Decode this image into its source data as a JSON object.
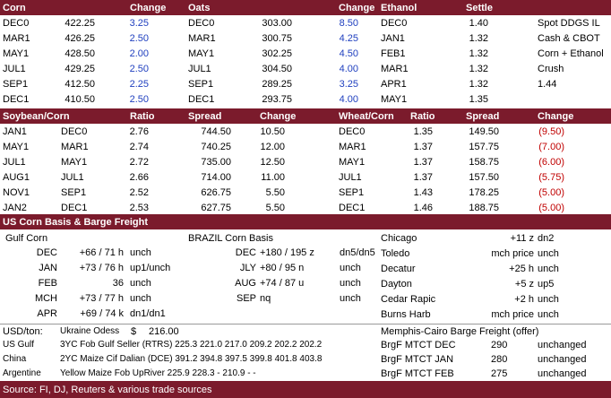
{
  "s1": {
    "headers": [
      "Corn",
      "Change",
      "Oats",
      "Change",
      "Ethanol",
      "Settle"
    ],
    "rows": [
      [
        "DEC0",
        "422.25",
        "3.25",
        "DEC0",
        "303.00",
        "8.50",
        "DEC0",
        "1.40",
        "Spot DDGS IL"
      ],
      [
        "MAR1",
        "426.25",
        "2.50",
        "MAR1",
        "300.75",
        "4.25",
        "JAN1",
        "1.32",
        "Cash & CBOT"
      ],
      [
        "MAY1",
        "428.50",
        "2.00",
        "MAY1",
        "302.25",
        "4.50",
        "FEB1",
        "1.32",
        "Corn + Ethanol"
      ],
      [
        "JUL1",
        "429.25",
        "2.50",
        "JUL1",
        "304.50",
        "4.00",
        "MAR1",
        "1.32",
        "Crush"
      ],
      [
        "SEP1",
        "412.50",
        "2.25",
        "SEP1",
        "289.25",
        "3.25",
        "APR1",
        "1.32",
        "1.44"
      ],
      [
        "DEC1",
        "410.50",
        "2.50",
        "DEC1",
        "293.75",
        "4.00",
        "MAY1",
        "1.35",
        ""
      ]
    ]
  },
  "s2": {
    "headers": [
      "Soybean/Corn",
      "Ratio",
      "Spread",
      "Change",
      "Wheat/Corn",
      "Ratio",
      "Spread",
      "Change"
    ],
    "rows": [
      [
        "JAN1",
        "DEC0",
        "2.76",
        "744.50",
        "10.50",
        "DEC0",
        "1.35",
        "149.50",
        "(9.50)"
      ],
      [
        "MAY1",
        "MAR1",
        "2.74",
        "740.25",
        "12.00",
        "MAR1",
        "1.37",
        "157.75",
        "(7.00)"
      ],
      [
        "JUL1",
        "MAY1",
        "2.72",
        "735.00",
        "12.50",
        "MAY1",
        "1.37",
        "158.75",
        "(6.00)"
      ],
      [
        "AUG1",
        "JUL1",
        "2.66",
        "714.00",
        "11.00",
        "JUL1",
        "1.37",
        "157.50",
        "(5.75)"
      ],
      [
        "NOV1",
        "SEP1",
        "2.52",
        "626.75",
        "5.50",
        "SEP1",
        "1.43",
        "178.25",
        "(5.00)"
      ],
      [
        "JAN2",
        "DEC1",
        "2.53",
        "627.75",
        "5.50",
        "DEC1",
        "1.46",
        "188.75",
        "(5.00)"
      ]
    ]
  },
  "s3": {
    "title": "US Corn Basis & Barge Freight",
    "gulf_title": "Gulf Corn",
    "gulf": [
      [
        "DEC",
        "+66 / 71 h",
        "unch"
      ],
      [
        "JAN",
        "+73 / 76 h",
        "up1/unch"
      ],
      [
        "FEB",
        "36",
        "unch"
      ],
      [
        "MCH",
        "+73 / 77 h",
        "unch"
      ],
      [
        "APR",
        "+69 / 74 k",
        "dn1/dn1"
      ]
    ],
    "brazil_title": "BRAZIL Corn Basis",
    "brazil": [
      [
        "DEC",
        "+180 / 195 z",
        "dn5/dn5"
      ],
      [
        "JLY",
        "+80 / 95 n",
        "unch"
      ],
      [
        "AUG",
        "+74 / 87 u",
        "unch"
      ],
      [
        "SEP",
        "nq",
        "unch"
      ]
    ],
    "interior": [
      [
        "Chicago",
        "+11 z",
        "dn2"
      ],
      [
        "Toledo",
        "mch price",
        "unch"
      ],
      [
        "Decatur",
        "+25 h",
        "unch"
      ],
      [
        "Dayton",
        "+5 z",
        "up5"
      ],
      [
        "Cedar Rapic",
        "+2 h",
        "unch"
      ],
      [
        "Burns Harb",
        "mch price",
        "unch"
      ]
    ],
    "usd_ton": "USD/ton:",
    "ukraine_label": "Ukraine Odess",
    "ukraine_currency": "$",
    "ukraine_value": "216.00",
    "memphis_title": "Memphis-Cairo Barge Freight (offer)",
    "fob": [
      [
        "US Gulf",
        "3YC Fob Gulf Seller (RTRS) 225.3  221.0  217.0  209.2  202.2  202.2"
      ],
      [
        "China",
        "2YC Maize Cif Dalian (DCE) 391.2  394.8  397.5  399.8  401.8  403.8"
      ],
      [
        "Argentine",
        "Yellow Maize Fob UpRiver   225.9  228.3   -    210.9    -       -"
      ]
    ],
    "barge": [
      [
        "BrgF MTCT DEC",
        "290",
        "unchanged"
      ],
      [
        "BrgF MTCT JAN",
        "280",
        "unchanged"
      ],
      [
        "BrgF MTCT FEB",
        "275",
        "unchanged"
      ]
    ],
    "source": "Source: FI, DJ, Reuters & various trade sources"
  },
  "colors": {
    "header_bg": "#7b1b2c",
    "blue": "#1f3fbf",
    "red": "#c00000"
  }
}
